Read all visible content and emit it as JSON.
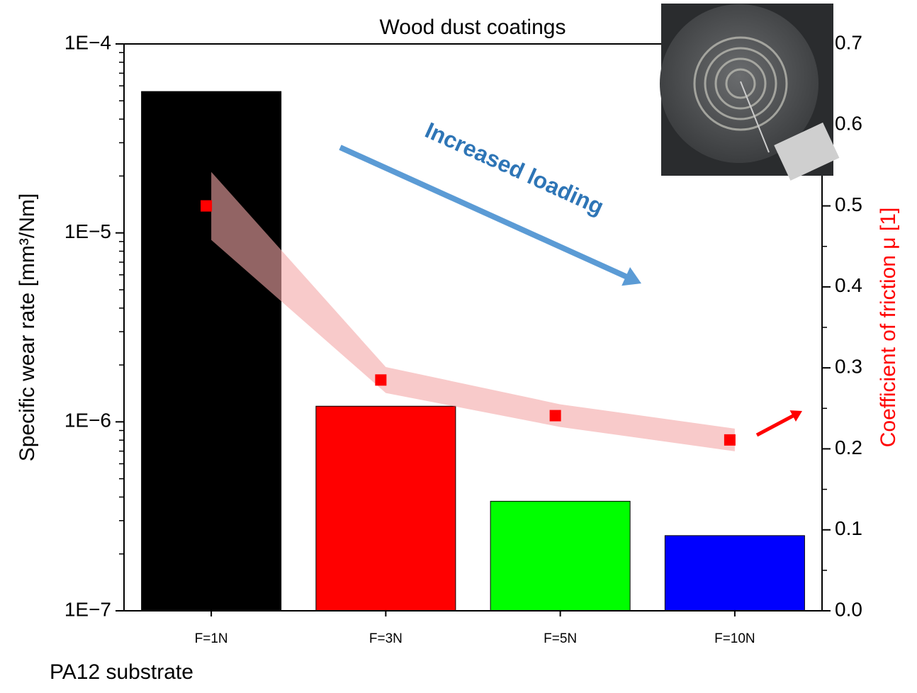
{
  "chart_data": {
    "type": "bar",
    "title": "Wood dust coatings",
    "y_label": "Specific wear rate [mm³/Nm]",
    "y2_label": "Coefficient of friction μ [1]",
    "annotation": "Increased loading",
    "footnote": "PA12 substrate",
    "categories": [
      "F=1N",
      "F=3N",
      "F=5N",
      "F=10N"
    ],
    "values": [
      5.6e-05,
      1.21e-06,
      3.8e-07,
      2.5e-07
    ],
    "colors": [
      "#000000",
      "#ff0000",
      "#00ff00",
      "#0000ff"
    ],
    "ylog": true,
    "ylim": [
      1e-07,
      0.0001
    ],
    "yticks": [
      {
        "value": 1e-07,
        "label": "1E−7"
      },
      {
        "value": 1e-06,
        "label": "1E−6"
      },
      {
        "value": 1e-05,
        "label": "1E−5"
      },
      {
        "value": 0.0001,
        "label": "1E−4"
      }
    ],
    "friction": {
      "axis": "y2",
      "color": "#ff0000",
      "band_color": "#f4a6a6",
      "values": [
        0.5,
        0.285,
        0.241,
        0.211
      ],
      "errors": [
        0.042,
        0.016,
        0.014,
        0.014
      ]
    },
    "y2lim": [
      0,
      0.7
    ],
    "y2ticks": [
      {
        "value": 0,
        "label": "0.0"
      },
      0.1,
      0.2,
      0.3,
      0.4,
      0.5,
      0.6,
      0.7
    ]
  }
}
